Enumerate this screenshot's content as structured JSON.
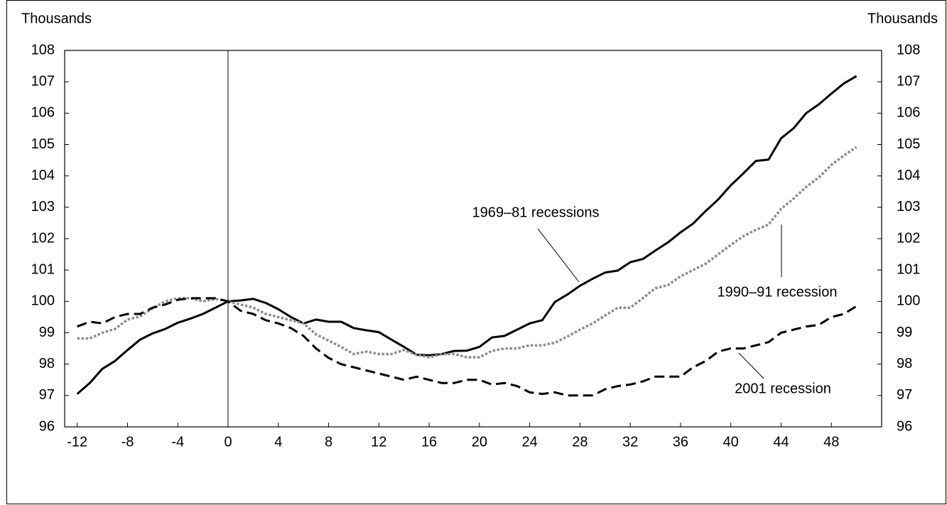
{
  "chart_data": {
    "type": "line",
    "ylabel": "Thousands",
    "y2label": "Thousands",
    "x": [
      -12,
      -11,
      -10,
      -9,
      -8,
      -7,
      -6,
      -5,
      -4,
      -3,
      -2,
      -1,
      0,
      1,
      2,
      3,
      4,
      5,
      6,
      7,
      8,
      9,
      10,
      11,
      12,
      13,
      14,
      15,
      16,
      17,
      18,
      19,
      20,
      21,
      22,
      23,
      24,
      25,
      26,
      27,
      28,
      29,
      30,
      31,
      32,
      33,
      34,
      35,
      36,
      37,
      38,
      39,
      40,
      41,
      42,
      43,
      44,
      45,
      46,
      47,
      48,
      49,
      50
    ],
    "xlim": [
      -13,
      52
    ],
    "xticks": [
      -12,
      -8,
      -4,
      0,
      4,
      8,
      12,
      16,
      20,
      24,
      28,
      32,
      36,
      40,
      44,
      48
    ],
    "ylim": [
      96,
      108
    ],
    "yticks": [
      96,
      97,
      98,
      99,
      100,
      101,
      102,
      103,
      104,
      105,
      106,
      107,
      108
    ],
    "y2lim": [
      96,
      108
    ],
    "y2ticks": [
      96,
      97,
      98,
      99,
      100,
      101,
      102,
      103,
      104,
      105,
      106,
      107,
      108
    ],
    "vline": 0,
    "series": [
      {
        "name": "1969–81 recessions",
        "color": "#000000",
        "style": "solid",
        "values": [
          97.05,
          97.4,
          97.85,
          98.1,
          98.45,
          98.78,
          98.98,
          99.12,
          99.32,
          99.45,
          99.6,
          99.8,
          100.0,
          100.03,
          100.08,
          99.95,
          99.75,
          99.5,
          99.3,
          99.42,
          99.35,
          99.35,
          99.15,
          99.08,
          99.02,
          98.78,
          98.55,
          98.3,
          98.28,
          98.32,
          98.42,
          98.43,
          98.55,
          98.85,
          98.9,
          99.1,
          99.3,
          99.4,
          99.98,
          100.22,
          100.5,
          100.72,
          100.92,
          100.98,
          101.25,
          101.35,
          101.62,
          101.88,
          102.2,
          102.48,
          102.88,
          103.25,
          103.7,
          104.08,
          104.48,
          104.52,
          105.2,
          105.52,
          106.0,
          106.28,
          106.62,
          106.95,
          107.18
        ]
      },
      {
        "name": "1990–91 recession",
        "color": "#8c8c8c",
        "style": "dotted",
        "values": [
          98.82,
          98.82,
          99.0,
          99.12,
          99.42,
          99.52,
          99.78,
          100.0,
          100.1,
          100.1,
          100.0,
          100.08,
          100.0,
          99.9,
          99.8,
          99.6,
          99.5,
          99.4,
          99.3,
          98.95,
          98.75,
          98.55,
          98.32,
          98.4,
          98.32,
          98.32,
          98.45,
          98.3,
          98.22,
          98.32,
          98.32,
          98.22,
          98.22,
          98.42,
          98.5,
          98.5,
          98.6,
          98.6,
          98.68,
          98.88,
          99.1,
          99.3,
          99.55,
          99.8,
          99.8,
          100.1,
          100.42,
          100.52,
          100.8,
          101.0,
          101.2,
          101.5,
          101.8,
          102.08,
          102.28,
          102.45,
          102.95,
          103.28,
          103.65,
          103.95,
          104.35,
          104.65,
          104.92
        ]
      },
      {
        "name": "2001 recession",
        "color": "#000000",
        "style": "dashed",
        "values": [
          99.2,
          99.35,
          99.3,
          99.5,
          99.6,
          99.6,
          99.8,
          99.9,
          100.05,
          100.1,
          100.1,
          100.1,
          100.0,
          99.7,
          99.6,
          99.4,
          99.3,
          99.15,
          98.9,
          98.5,
          98.2,
          98.0,
          97.9,
          97.8,
          97.7,
          97.6,
          97.5,
          97.6,
          97.5,
          97.4,
          97.4,
          97.5,
          97.5,
          97.35,
          97.4,
          97.3,
          97.1,
          97.05,
          97.1,
          97.0,
          97.0,
          97.0,
          97.2,
          97.3,
          97.35,
          97.45,
          97.6,
          97.6,
          97.6,
          97.9,
          98.1,
          98.4,
          98.5,
          98.5,
          98.6,
          98.7,
          99.0,
          99.1,
          99.2,
          99.25,
          99.5,
          99.6,
          99.85
        ]
      }
    ]
  }
}
